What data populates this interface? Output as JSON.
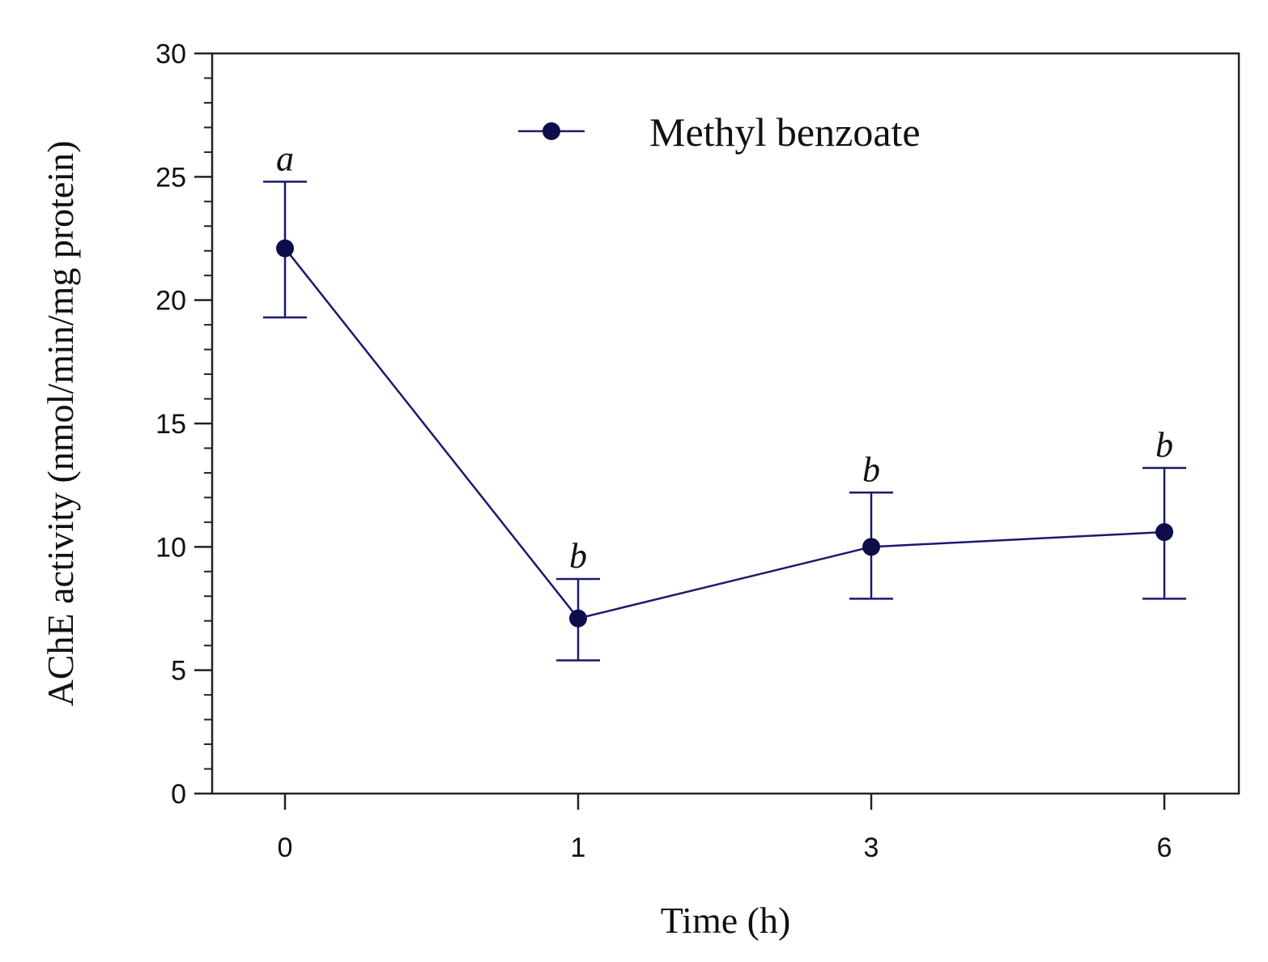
{
  "chart_data": {
    "type": "line",
    "title": "",
    "xlabel": "Time (h)",
    "ylabel": "AChE activity (nmol/min/mg protein)",
    "ylim": [
      0,
      30
    ],
    "y_ticks": [
      "0",
      "5",
      "10",
      "15",
      "20",
      "25",
      "30"
    ],
    "x_ticks": [
      "0",
      "1",
      "3",
      "6"
    ],
    "grid": false,
    "legend": "top-center",
    "series": [
      {
        "name": "Methyl benzoate",
        "color": "#1a1a6e",
        "marker_color": "#0d0d4a",
        "points": [
          {
            "x": "0",
            "y": 22.1,
            "err_low": 19.3,
            "err_high": 24.8,
            "label": "a"
          },
          {
            "x": "1",
            "y": 7.1,
            "err_low": 5.4,
            "err_high": 8.7,
            "label": "b"
          },
          {
            "x": "3",
            "y": 10.0,
            "err_low": 7.9,
            "err_high": 12.2,
            "label": "b"
          },
          {
            "x": "6",
            "y": 10.6,
            "err_low": 7.9,
            "err_high": 13.2,
            "label": "b"
          }
        ]
      }
    ]
  }
}
